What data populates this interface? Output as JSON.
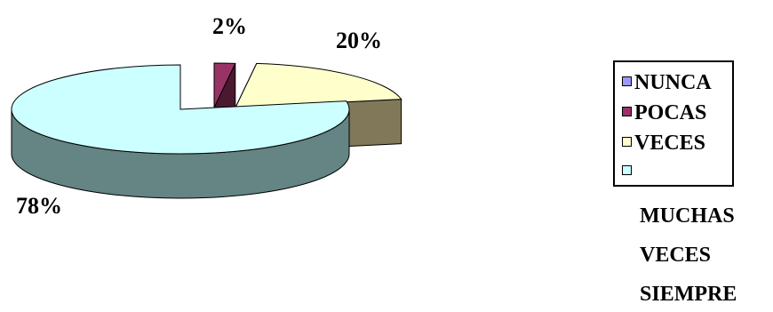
{
  "chart_data": {
    "type": "pie",
    "title": "",
    "style": "3d-exploded",
    "slices": [
      {
        "label": "2%",
        "value": 2,
        "color": "#993366",
        "side_color": "#4a1930"
      },
      {
        "label": "20%",
        "value": 20,
        "color": "#ffffcc",
        "side_color": "#807858"
      },
      {
        "label": "78%",
        "value": 78,
        "color": "#ccffff",
        "side_color": "#658484"
      }
    ],
    "legend": {
      "placement": "right",
      "entries": [
        {
          "label": "NUNCA",
          "color": "#9999ff"
        },
        {
          "label": "POCAS",
          "color": "#993366"
        },
        {
          "label": "VECES",
          "color": "#ffffcc"
        },
        {
          "label": "",
          "color": "#ccffff"
        }
      ],
      "overflow_labels": [
        "MUCHAS",
        "VECES",
        "SIEMPRE"
      ]
    }
  }
}
